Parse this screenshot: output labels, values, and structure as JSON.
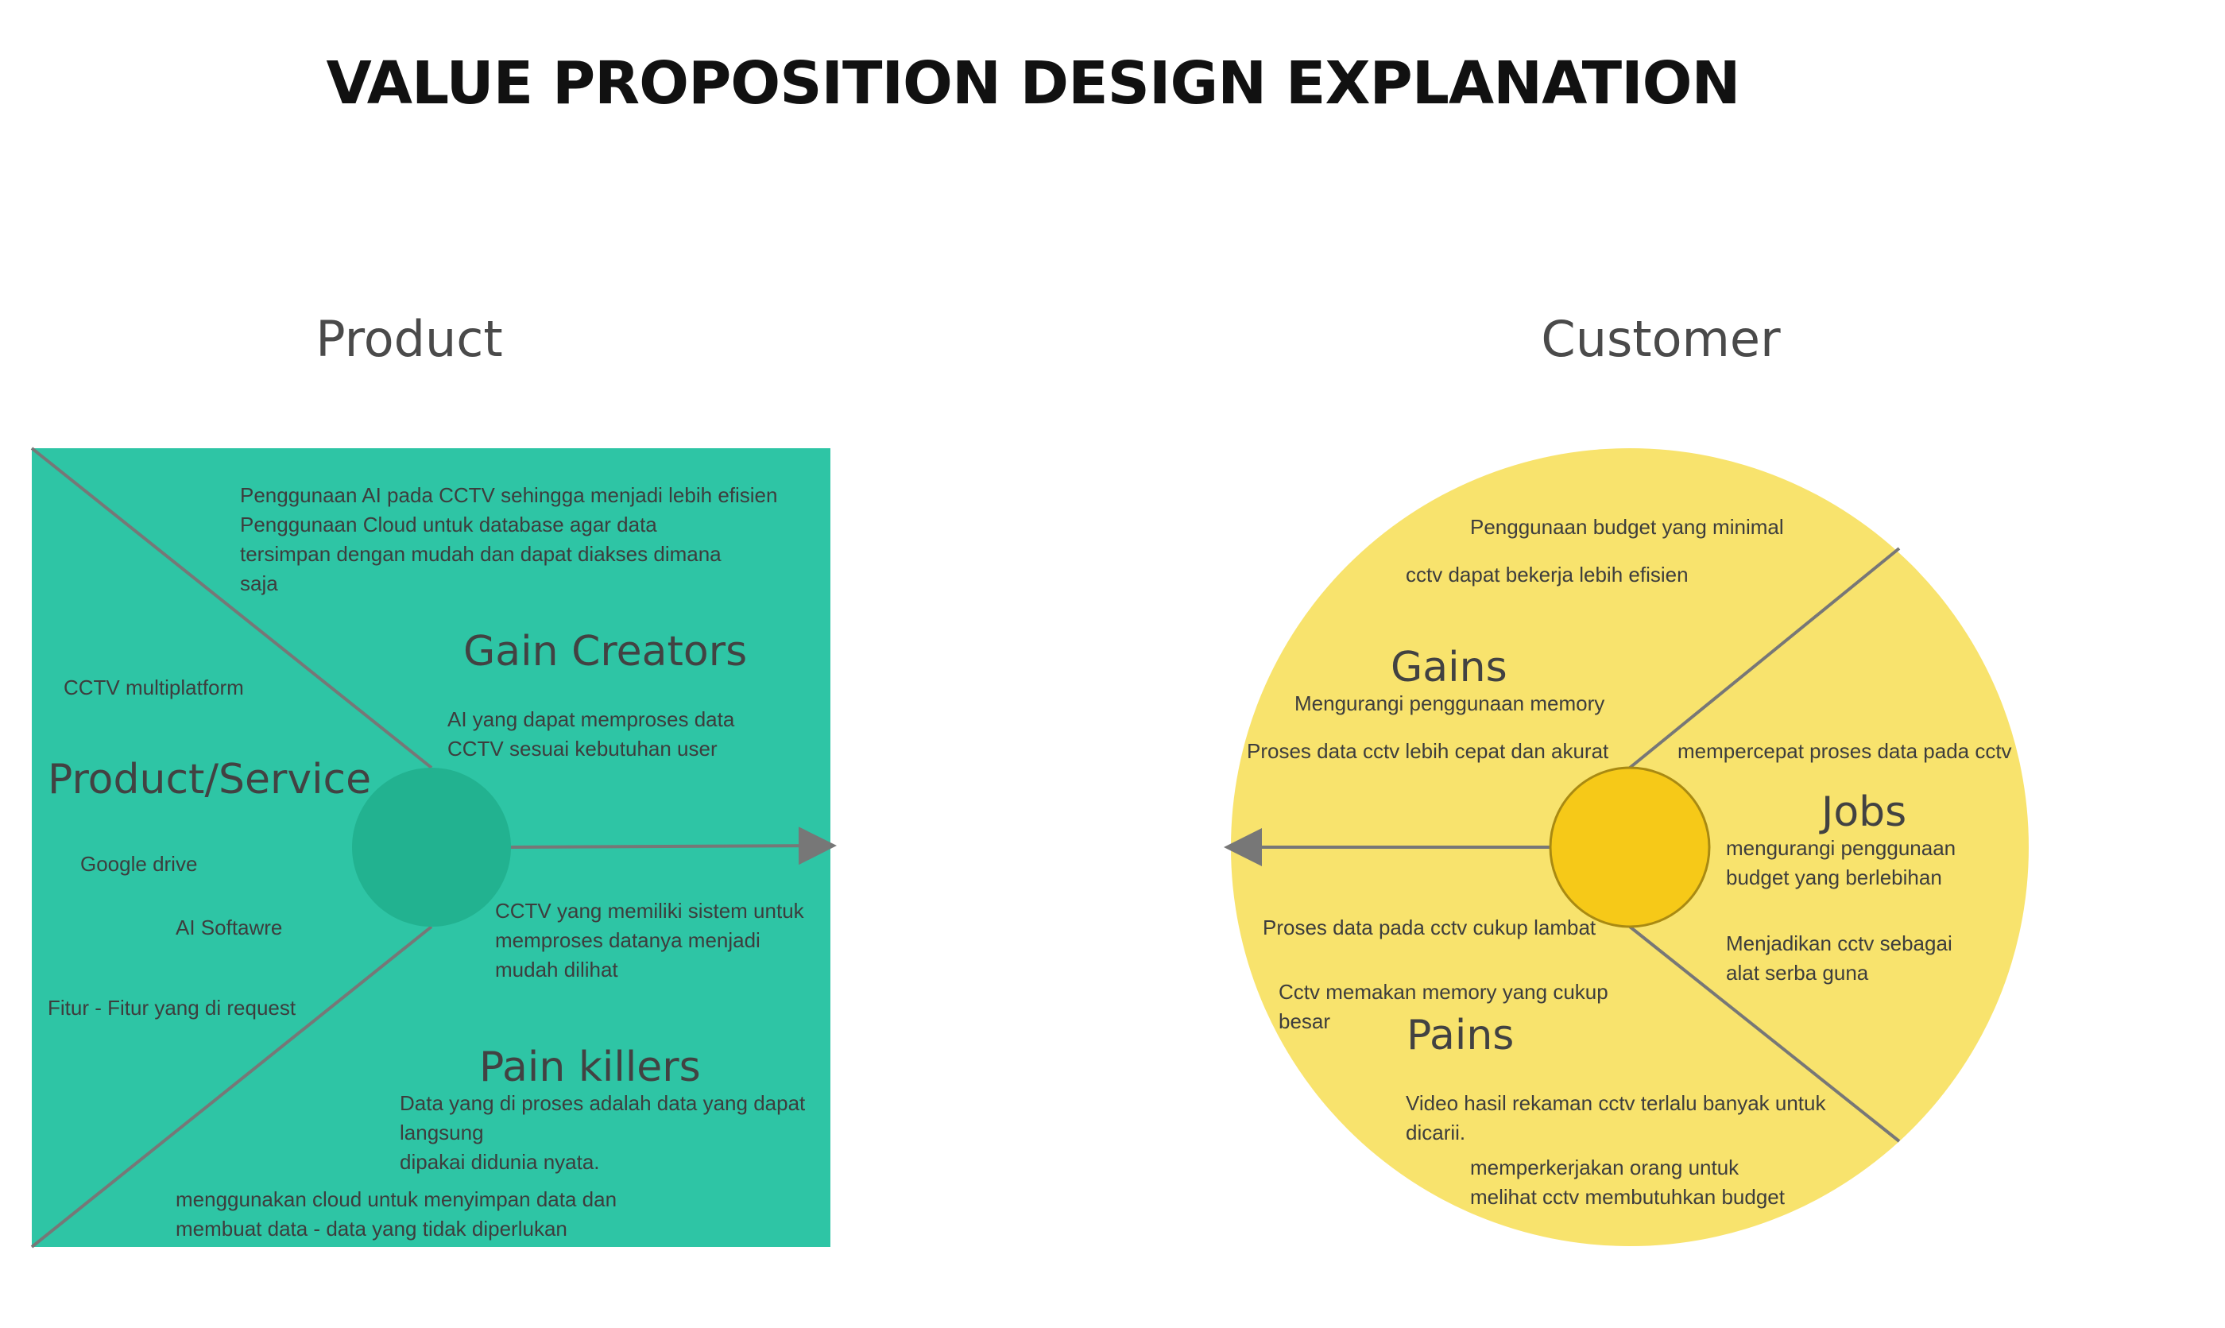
{
  "title": "VALUE PROPOSITION DESIGN EXPLANATION",
  "colors": {
    "product_bg": "#2ec5a5",
    "product_center": "#22b290",
    "customer_bg": "#f8e36d",
    "customer_center": "#f6c918",
    "line": "#777777",
    "text": "#3d3d3d"
  },
  "product": {
    "heading": "Product",
    "gain_creators": {
      "label": "Gain Creators",
      "items": [
        [
          "Penggunaan AI pada CCTV sehingga menjadi lebih efisien"
        ],
        [
          "Penggunaan Cloud untuk database agar data",
          "tersimpan dengan mudah dan dapat diakses dimana",
          "saja"
        ],
        [
          "AI yang dapat memproses data",
          "CCTV sesuai kebutuhan user"
        ]
      ]
    },
    "product_service": {
      "label": "Product/Service",
      "items": [
        [
          "CCTV multiplatform"
        ],
        [
          "Google drive"
        ],
        [
          "AI Softawre"
        ],
        [
          "Fitur - Fitur yang di request"
        ]
      ]
    },
    "pain_killers": {
      "label": "Pain killers",
      "items": [
        [
          "CCTV yang memiliki sistem untuk",
          "memproses datanya menjadi",
          "mudah dilihat"
        ],
        [
          "Data yang di proses adalah data yang dapat",
          "langsung",
          "dipakai didunia nyata."
        ],
        [
          "menggunakan cloud untuk menyimpan data dan",
          "membuat data - data yang tidak diperlukan"
        ]
      ]
    }
  },
  "customer": {
    "heading": "Customer",
    "gains": {
      "label": "Gains",
      "items": [
        [
          "Penggunaan budget yang minimal"
        ],
        [
          "cctv dapat bekerja lebih efisien"
        ],
        [
          "Mengurangi penggunaan memory"
        ],
        [
          "Proses data cctv lebih cepat dan akurat"
        ]
      ]
    },
    "jobs": {
      "label": "Jobs",
      "items": [
        [
          "mempercepat proses data pada cctv"
        ],
        [
          "mengurangi penggunaan",
          "budget yang berlebihan"
        ],
        [
          "Menjadikan cctv sebagai",
          "alat serba guna"
        ]
      ]
    },
    "pains": {
      "label": "Pains",
      "items": [
        [
          "Proses data pada cctv cukup lambat"
        ],
        [
          "Cctv memakan memory yang cukup",
          "besar"
        ],
        [
          "Video hasil rekaman cctv terlalu banyak untuk",
          "dicarii."
        ],
        [
          "memperkerjakan orang untuk",
          "melihat cctv membutuhkan budget"
        ]
      ]
    }
  }
}
